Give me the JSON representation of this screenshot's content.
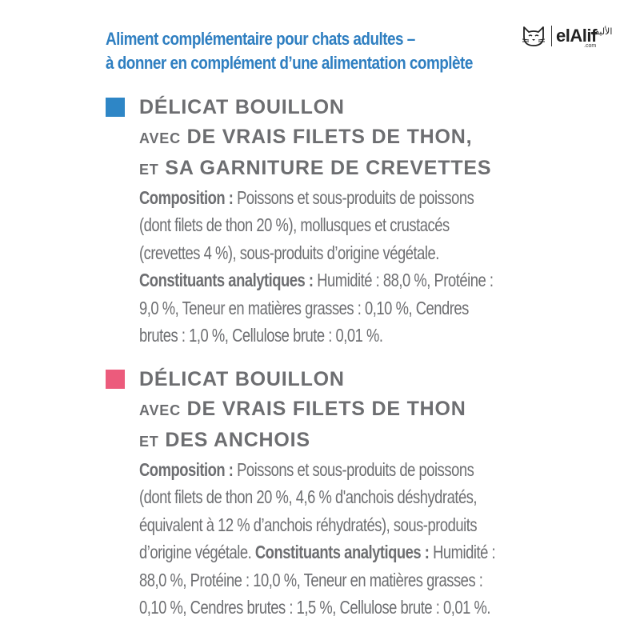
{
  "header": {
    "line1": "Aliment complémentaire pour chats adultes –",
    "line2": "à donner en complément d’une alimentation complète"
  },
  "logo": {
    "brand": "elAlif",
    "sub": ".com",
    "arabic": "الأليف",
    "icon": "cat-face-icon"
  },
  "colors": {
    "header_blue": "#2f7fc1",
    "swatch_blue": "#2e86c6",
    "swatch_pink": "#ec5b7c",
    "text_grey": "#6d6e71"
  },
  "sections": [
    {
      "title_line1": "DÉLICAT BOUILLON",
      "title_line2_prefix": "AVEC",
      "title_line2": "DE VRAIS FILETS DE THON,",
      "title_line3_prefix": "ET",
      "title_line3": "SA GARNITURE DE CREVETTES",
      "composition_label": "Composition :",
      "composition_l1": "Poissons et sous-produits de poissons",
      "composition_l2": "(dont filets de thon 20 %), mollusques et crustacés",
      "composition_l3": "(crevettes 4 %), sous-produits d’origine végétale.",
      "analytic_label": "Constituants analytiques :",
      "analytic_l1": "Humidité : 88,0 %, Protéine :",
      "analytic_l2": "9,0 %, Teneur en matières grasses : 0,10 %, Cendres",
      "analytic_l3": "brutes : 1,0 %, Cellulose brute : 0,01 %."
    },
    {
      "title_line1": "DÉLICAT BOUILLON",
      "title_line2_prefix": "AVEC",
      "title_line2": "DE VRAIS FILETS DE THON",
      "title_line3_prefix": "ET",
      "title_line3": "DES ANCHOIS",
      "composition_label": "Composition :",
      "composition_l1": "Poissons et sous-produits de poissons",
      "composition_l2": "(dont filets de thon 20 %, 4,6 % d'anchois déshydratés,",
      "composition_l3": "équivalent à 12 % d’anchois réhydratés), sous-produits",
      "composition_l4": "d’origine végétale.",
      "analytic_label": "Constituants analytiques :",
      "analytic_l0": "Humidité :",
      "analytic_l1": "88,0 %, Protéine : 10,0 %, Teneur en matières grasses :",
      "analytic_l2": "0,10 %, Cendres brutes : 1,5 %, Cellulose brute : 0,01 %."
    }
  ]
}
